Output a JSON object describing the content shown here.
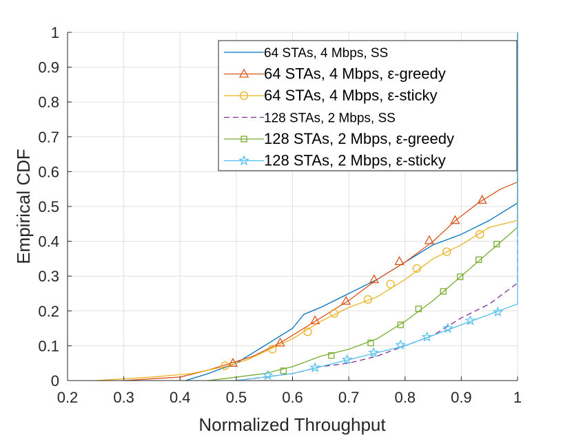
{
  "chart_data": {
    "type": "line",
    "title": "",
    "xlabel": "Normalized Throughput",
    "ylabel": "Empirical CDF",
    "xlim": [
      0.2,
      1.0
    ],
    "ylim": [
      0,
      1
    ],
    "grid": true,
    "legend_position": "top-right",
    "x_ticks": [
      0.2,
      0.3,
      0.4,
      0.5,
      0.6,
      0.7,
      0.8,
      0.9,
      1.0
    ],
    "x_tick_labels": [
      "0.2",
      "0.3",
      "0.4",
      "0.5",
      "0.6",
      "0.7",
      "0.8",
      "0.9",
      "1"
    ],
    "y_ticks": [
      0,
      0.1,
      0.2,
      0.3,
      0.4,
      0.5,
      0.6,
      0.7,
      0.8,
      0.9,
      1.0
    ],
    "y_tick_labels": [
      "0",
      "0.1",
      "0.2",
      "0.3",
      "0.4",
      "0.5",
      "0.6",
      "0.7",
      "0.8",
      "0.9",
      "1"
    ],
    "series": [
      {
        "name": "64 STAs, 4 Mbps, SS",
        "color": "#0072BD",
        "marker": "none",
        "dash": "solid",
        "x": [
          0.41,
          0.45,
          0.5,
          0.55,
          0.6,
          0.62,
          0.65,
          0.7,
          0.75,
          0.8,
          0.85,
          0.9,
          0.95,
          0.98,
          1.0,
          1.0
        ],
        "y": [
          0.0,
          0.02,
          0.05,
          0.1,
          0.15,
          0.19,
          0.21,
          0.25,
          0.29,
          0.34,
          0.39,
          0.42,
          0.46,
          0.49,
          0.51,
          1.0
        ],
        "markers_x": [],
        "markers_y": []
      },
      {
        "name": "64 STAs, 4 Mbps, ε-greedy",
        "color": "#D95319",
        "marker": "triangle",
        "dash": "solid",
        "x": [
          0.3,
          0.4,
          0.45,
          0.49,
          0.53,
          0.58,
          0.6,
          0.65,
          0.7,
          0.75,
          0.8,
          0.85,
          0.89,
          0.93,
          0.97,
          1.0,
          1.0
        ],
        "y": [
          0.0,
          0.01,
          0.03,
          0.05,
          0.07,
          0.11,
          0.13,
          0.18,
          0.23,
          0.29,
          0.34,
          0.4,
          0.46,
          0.51,
          0.55,
          0.57,
          1.0
        ],
        "markers_x": [
          0.494,
          0.578,
          0.64,
          0.695,
          0.745,
          0.79,
          0.843,
          0.889,
          0.937
        ],
        "markers_y": [
          0.05,
          0.108,
          0.172,
          0.228,
          0.29,
          0.342,
          0.402,
          0.46,
          0.518
        ]
      },
      {
        "name": "64 STAs, 4 Mbps, ε-sticky",
        "color": "#EDB120",
        "marker": "circle",
        "dash": "solid",
        "x": [
          0.25,
          0.35,
          0.42,
          0.48,
          0.52,
          0.56,
          0.6,
          0.65,
          0.7,
          0.75,
          0.8,
          0.85,
          0.9,
          0.95,
          1.0,
          1.0
        ],
        "y": [
          0.0,
          0.01,
          0.02,
          0.04,
          0.06,
          0.09,
          0.12,
          0.17,
          0.21,
          0.24,
          0.29,
          0.35,
          0.39,
          0.44,
          0.46,
          1.0
        ],
        "markers_x": [
          0.48,
          0.564,
          0.627,
          0.674,
          0.734,
          0.774,
          0.821,
          0.874,
          0.933
        ],
        "markers_y": [
          0.043,
          0.09,
          0.14,
          0.193,
          0.233,
          0.277,
          0.322,
          0.37,
          0.42
        ]
      },
      {
        "name": "128 STAs, 2 Mbps, SS",
        "color": "#7E2F8E",
        "marker": "none",
        "dash": "dashed",
        "x": [
          0.5,
          0.6,
          0.65,
          0.7,
          0.75,
          0.8,
          0.85,
          0.9,
          0.95,
          1.0,
          1.0
        ],
        "y": [
          0.0,
          0.02,
          0.04,
          0.05,
          0.07,
          0.1,
          0.13,
          0.18,
          0.22,
          0.28,
          1.0
        ],
        "markers_x": [],
        "markers_y": []
      },
      {
        "name": "128 STAs, 2 Mbps, ε-greedy",
        "color": "#77AC30",
        "marker": "square",
        "dash": "solid",
        "x": [
          0.45,
          0.5,
          0.55,
          0.6,
          0.65,
          0.7,
          0.75,
          0.8,
          0.85,
          0.9,
          0.95,
          1.0,
          1.0
        ],
        "y": [
          0.0,
          0.01,
          0.02,
          0.04,
          0.07,
          0.09,
          0.12,
          0.17,
          0.23,
          0.3,
          0.37,
          0.44,
          1.0
        ],
        "markers_x": [
          0.584,
          0.669,
          0.739,
          0.792,
          0.824,
          0.868,
          0.898,
          0.931,
          0.963
        ],
        "markers_y": [
          0.028,
          0.072,
          0.108,
          0.16,
          0.206,
          0.256,
          0.298,
          0.347,
          0.392
        ]
      },
      {
        "name": "128 STAs, 2 Mbps, ε-sticky",
        "color": "#4DBEEE",
        "marker": "star",
        "dash": "solid",
        "x": [
          0.5,
          0.55,
          0.6,
          0.65,
          0.7,
          0.75,
          0.8,
          0.85,
          0.9,
          0.95,
          1.0,
          1.0
        ],
        "y": [
          0.0,
          0.01,
          0.02,
          0.04,
          0.06,
          0.08,
          0.1,
          0.13,
          0.16,
          0.19,
          0.22,
          1.0
        ],
        "markers_x": [
          0.556,
          0.64,
          0.697,
          0.744,
          0.792,
          0.839,
          0.876,
          0.916,
          0.965
        ],
        "markers_y": [
          0.015,
          0.037,
          0.06,
          0.08,
          0.102,
          0.125,
          0.15,
          0.172,
          0.197
        ]
      }
    ]
  }
}
